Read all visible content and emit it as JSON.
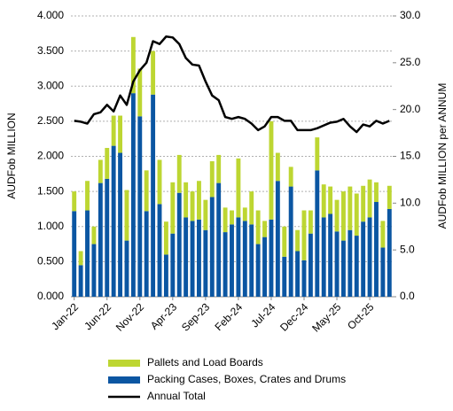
{
  "chart_data": {
    "type": "stacked_bar_line",
    "categories": [
      "Jan-22",
      null,
      null,
      null,
      null,
      "Jun-22",
      null,
      null,
      null,
      null,
      "Nov-22",
      null,
      null,
      null,
      null,
      "Apr-23",
      null,
      null,
      null,
      null,
      "Sep-23",
      null,
      null,
      null,
      null,
      "Feb-24",
      null,
      null,
      null,
      null,
      "Jul-24",
      null,
      null,
      null,
      null,
      "Dec-24",
      null,
      null,
      null,
      null,
      "May-25",
      null,
      null,
      null,
      null,
      "Oct-25",
      null,
      null,
      null
    ],
    "y_label": "AUDFob MILLION",
    "y2_label": "AUDFob MILLION per ANNUM",
    "series": [
      {
        "name": "Packing Cases, Boxes, Crates and Drums",
        "color": "#0b56a2",
        "values": [
          1.22,
          0.45,
          1.23,
          0.75,
          1.62,
          1.68,
          2.15,
          2.05,
          0.8,
          2.9,
          2.57,
          1.22,
          2.88,
          1.32,
          0.6,
          0.9,
          1.48,
          1.13,
          1.08,
          1.1,
          0.95,
          1.42,
          1.62,
          0.92,
          1.03,
          1.13,
          1.08,
          1.03,
          0.75,
          0.85,
          1.1,
          1.65,
          0.57,
          1.57,
          0.65,
          0.52,
          0.9,
          1.8,
          1.13,
          1.18,
          0.93,
          0.8,
          0.95,
          0.87,
          1.07,
          1.13,
          1.35,
          0.7,
          1.25
        ]
      },
      {
        "name": "Pallets and Load Boards",
        "color": "#bdd632",
        "values": [
          0.28,
          0.2,
          0.42,
          0.25,
          0.33,
          0.44,
          0.43,
          0.53,
          0.72,
          0.8,
          0.68,
          0.58,
          0.62,
          0.63,
          0.47,
          0.73,
          0.54,
          0.5,
          0.42,
          0.55,
          0.43,
          0.51,
          0.4,
          0.35,
          0.2,
          0.84,
          0.19,
          0.47,
          0.48,
          0.23,
          1.4,
          0.4,
          0.43,
          0.28,
          0.3,
          0.71,
          0.33,
          0.47,
          0.47,
          0.39,
          0.45,
          0.7,
          0.62,
          0.6,
          0.51,
          0.54,
          0.28,
          0.38,
          0.33
        ]
      },
      {
        "name": "Annual Total",
        "color": "#000000",
        "axis": "y2",
        "values": [
          18.8,
          18.7,
          18.5,
          19.5,
          19.7,
          20.5,
          19.8,
          21.5,
          20.5,
          23.0,
          24.2,
          25.0,
          27.3,
          27.0,
          27.8,
          27.7,
          27.0,
          25.5,
          24.8,
          24.7,
          23.0,
          21.5,
          21.0,
          19.2,
          19.0,
          19.2,
          19.0,
          18.5,
          17.8,
          18.2,
          19.2,
          19.2,
          18.8,
          18.8,
          17.8,
          17.8,
          17.8,
          18.0,
          18.3,
          18.6,
          18.7,
          19.0,
          18.2,
          17.6,
          18.4,
          18.2,
          18.8,
          18.5,
          18.8
        ]
      }
    ],
    "ylim": [
      0,
      4
    ],
    "yticks": [
      {
        "value": 0,
        "label": "0.000"
      },
      {
        "value": 0.5,
        "label": "0.500"
      },
      {
        "value": 1,
        "label": "1.000"
      },
      {
        "value": 1.5,
        "label": "1.500"
      },
      {
        "value": 2,
        "label": "2.000"
      },
      {
        "value": 2.5,
        "label": "2.500"
      },
      {
        "value": 3,
        "label": "3.000"
      },
      {
        "value": 3.5,
        "label": "3.500"
      },
      {
        "value": 4,
        "label": "4.000"
      }
    ],
    "y2lim": [
      0,
      30
    ],
    "y2ticks": [
      {
        "value": 0,
        "label": "0.0"
      },
      {
        "value": 5,
        "label": "5.0"
      },
      {
        "value": 10,
        "label": "10.0"
      },
      {
        "value": 15,
        "label": "15.0"
      },
      {
        "value": 20,
        "label": "20.0"
      },
      {
        "value": 25,
        "label": "25.0"
      },
      {
        "value": 30,
        "label": "30.0"
      }
    ],
    "grid": true
  }
}
